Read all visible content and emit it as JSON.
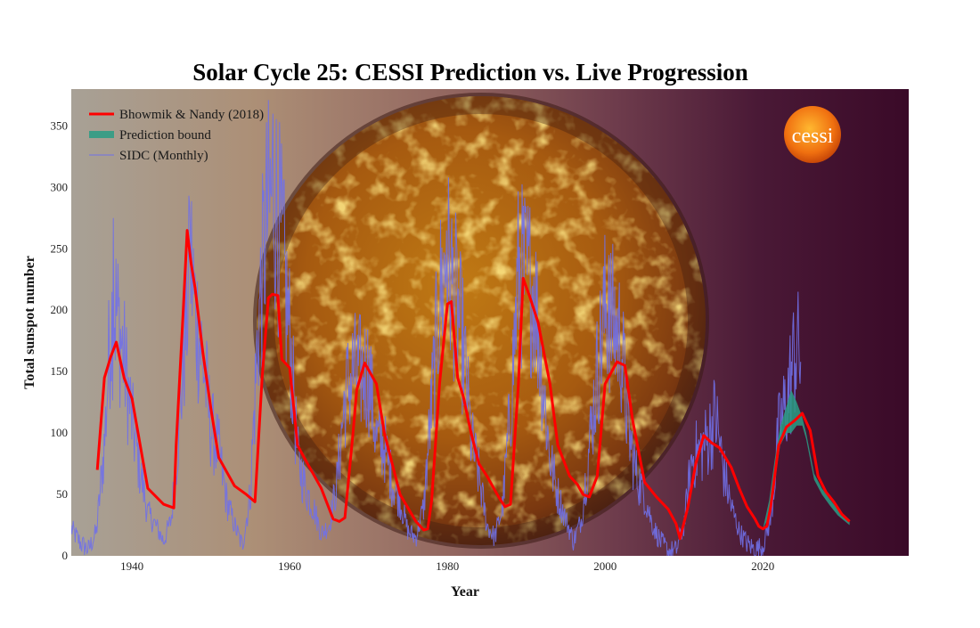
{
  "colors": {
    "prediction": "#ff0000",
    "bound": "#2a9d85",
    "sidc": "#7070e8",
    "title": "#000000"
  },
  "icons": {
    "logo": "cessi-sun-logo",
    "background": "sun-photo"
  },
  "logo_text": "cessi",
  "chart_data": {
    "type": "line",
    "title": "Solar Cycle 25: CESSI Prediction vs. Live Progression",
    "xlabel": "Year",
    "ylabel": "Total sunspot number",
    "xlim": [
      1932.3,
      2038.5
    ],
    "ylim": [
      0,
      380
    ],
    "xticks": [
      1940,
      1960,
      1980,
      2000,
      2020
    ],
    "yticks": [
      0,
      50,
      100,
      150,
      200,
      250,
      300,
      350
    ],
    "legend_position": "top-left",
    "series": [
      {
        "name": "Bhowmik & Nandy (2018)",
        "style": "line-thick",
        "x": [
          1935.6,
          1936.5,
          1937.3,
          1938.0,
          1939.0,
          1940.0,
          1942.0,
          1944.0,
          1945.3,
          1945.6,
          1946.5,
          1947.0,
          1947.5,
          1948.0,
          1949.0,
          1950.0,
          1951.0,
          1953.0,
          1954.5,
          1955.6,
          1956.5,
          1957.3,
          1957.8,
          1958.5,
          1959.0,
          1960.0,
          1961.0,
          1962.0,
          1964.0,
          1965.5,
          1966.3,
          1967.0,
          1968.0,
          1968.5,
          1969.5,
          1971.0,
          1972.0,
          1974.0,
          1976.0,
          1977.0,
          1977.5,
          1978.0,
          1979.0,
          1980.0,
          1980.5,
          1981.3,
          1982.0,
          1983.0,
          1984.0,
          1985.0,
          1986.5,
          1987.3,
          1988.0,
          1989.0,
          1989.6,
          1990.5,
          1991.5,
          1993.0,
          1994.0,
          1995.5,
          1996.5,
          1997.2,
          1998.0,
          1999.0,
          2000.0,
          2001.5,
          2002.5,
          2003.5,
          2005.0,
          2006.5,
          2008.0,
          2009.0,
          2009.5,
          2010.5,
          2011.5,
          2012.5,
          2013.5,
          2014.5,
          2016.0,
          2017.0,
          2018.0,
          2019.0,
          2019.5,
          2020.0,
          2020.5,
          2021.0,
          2022.0,
          2023.0,
          2024.0,
          2025.0,
          2026.0,
          2027.0,
          2028.0,
          2029.0,
          2030.0,
          2031.0
        ],
        "y": [
          70,
          145,
          162,
          174,
          145,
          128,
          55,
          42,
          39,
          90,
          200,
          265,
          238,
          218,
          165,
          120,
          80,
          57,
          50,
          44,
          145,
          210,
          213,
          212,
          160,
          153,
          90,
          78,
          55,
          30,
          28,
          31,
          98,
          135,
          157,
          140,
          100,
          50,
          28,
          21,
          22,
          45,
          140,
          205,
          207,
          145,
          130,
          100,
          75,
          65,
          48,
          40,
          42,
          140,
          226,
          210,
          190,
          140,
          90,
          65,
          58,
          50,
          48,
          65,
          140,
          158,
          155,
          110,
          60,
          48,
          38,
          26,
          14,
          40,
          75,
          98,
          92,
          88,
          72,
          55,
          40,
          30,
          24,
          22,
          24,
          40,
          90,
          105,
          110,
          116,
          102,
          65,
          52,
          44,
          34,
          28
        ]
      },
      {
        "name": "Prediction bound",
        "style": "band",
        "x": [
          2020.0,
          2020.8,
          2021.5,
          2022.2,
          2023.0,
          2023.6,
          2024.3,
          2025.0,
          2025.5,
          2026.5,
          2027.5,
          2028.5,
          2029.5,
          2031.0
        ],
        "upper": [
          22,
          45,
          78,
          105,
          122,
          135,
          125,
          113,
          100,
          67,
          55,
          46,
          38,
          29
        ],
        "lower": [
          22,
          32,
          60,
          90,
          100,
          100,
          106,
          106,
          95,
          62,
          50,
          41,
          33,
          25
        ]
      },
      {
        "name": "SIDC (Monthly)",
        "style": "line-thin",
        "anchors": [
          [
            1932.3,
            22
          ],
          [
            1933.5,
            10
          ],
          [
            1934.5,
            5
          ],
          [
            1935.5,
            20
          ],
          [
            1936.5,
            90
          ],
          [
            1937.3,
            190
          ],
          [
            1938.0,
            200
          ],
          [
            1939.0,
            160
          ],
          [
            1940.0,
            110
          ],
          [
            1941.0,
            70
          ],
          [
            1942.0,
            35
          ],
          [
            1943.0,
            25
          ],
          [
            1944.0,
            12
          ],
          [
            1945.0,
            30
          ],
          [
            1946.0,
            110
          ],
          [
            1947.0,
            205
          ],
          [
            1947.5,
            240
          ],
          [
            1948.0,
            200
          ],
          [
            1949.0,
            160
          ],
          [
            1950.0,
            105
          ],
          [
            1951.0,
            85
          ],
          [
            1952.0,
            45
          ],
          [
            1953.0,
            25
          ],
          [
            1954.0,
            8
          ],
          [
            1955.0,
            50
          ],
          [
            1956.0,
            185
          ],
          [
            1957.0,
            270
          ],
          [
            1958.0,
            300
          ],
          [
            1959.0,
            250
          ],
          [
            1960.0,
            180
          ],
          [
            1961.0,
            80
          ],
          [
            1962.0,
            55
          ],
          [
            1963.0,
            40
          ],
          [
            1964.0,
            18
          ],
          [
            1965.0,
            25
          ],
          [
            1966.0,
            60
          ],
          [
            1967.0,
            130
          ],
          [
            1968.0,
            150
          ],
          [
            1969.0,
            148
          ],
          [
            1970.0,
            150
          ],
          [
            1971.0,
            95
          ],
          [
            1972.0,
            90
          ],
          [
            1973.0,
            60
          ],
          [
            1974.0,
            45
          ],
          [
            1975.0,
            20
          ],
          [
            1976.0,
            15
          ],
          [
            1977.0,
            40
          ],
          [
            1978.0,
            125
          ],
          [
            1979.0,
            210
          ],
          [
            1980.0,
            240
          ],
          [
            1981.0,
            210
          ],
          [
            1982.0,
            170
          ],
          [
            1983.0,
            95
          ],
          [
            1984.0,
            65
          ],
          [
            1985.0,
            25
          ],
          [
            1986.0,
            15
          ],
          [
            1987.0,
            40
          ],
          [
            1988.0,
            120
          ],
          [
            1989.0,
            230
          ],
          [
            1990.0,
            225
          ],
          [
            1991.0,
            220
          ],
          [
            1992.0,
            150
          ],
          [
            1993.0,
            80
          ],
          [
            1994.0,
            50
          ],
          [
            1995.0,
            30
          ],
          [
            1996.0,
            12
          ],
          [
            1997.0,
            30
          ],
          [
            1998.0,
            90
          ],
          [
            1999.0,
            150
          ],
          [
            2000.0,
            200
          ],
          [
            2001.0,
            190
          ],
          [
            2002.0,
            175
          ],
          [
            2003.0,
            100
          ],
          [
            2004.0,
            65
          ],
          [
            2005.0,
            50
          ],
          [
            2006.0,
            25
          ],
          [
            2007.0,
            12
          ],
          [
            2008.0,
            4
          ],
          [
            2009.0,
            4
          ],
          [
            2010.0,
            25
          ],
          [
            2011.0,
            80
          ],
          [
            2012.0,
            85
          ],
          [
            2013.0,
            95
          ],
          [
            2014.0,
            115
          ],
          [
            2015.0,
            70
          ],
          [
            2016.0,
            40
          ],
          [
            2017.0,
            20
          ],
          [
            2018.0,
            10
          ],
          [
            2019.0,
            5
          ],
          [
            2020.0,
            8
          ],
          [
            2021.0,
            30
          ],
          [
            2022.0,
            100
          ],
          [
            2023.0,
            125
          ],
          [
            2023.7,
            150
          ],
          [
            2024.3,
            175
          ],
          [
            2024.8,
            160
          ]
        ],
        "peaks": [
          [
            1937.6,
            275
          ],
          [
            1947.3,
            285
          ],
          [
            1957.9,
            360
          ],
          [
            1959.2,
            305
          ],
          [
            1968.6,
            180
          ],
          [
            1979.9,
            265
          ],
          [
            1989.6,
            285
          ],
          [
            2000.5,
            245
          ],
          [
            2014.2,
            130
          ],
          [
            2024.5,
            215
          ]
        ]
      }
    ]
  }
}
